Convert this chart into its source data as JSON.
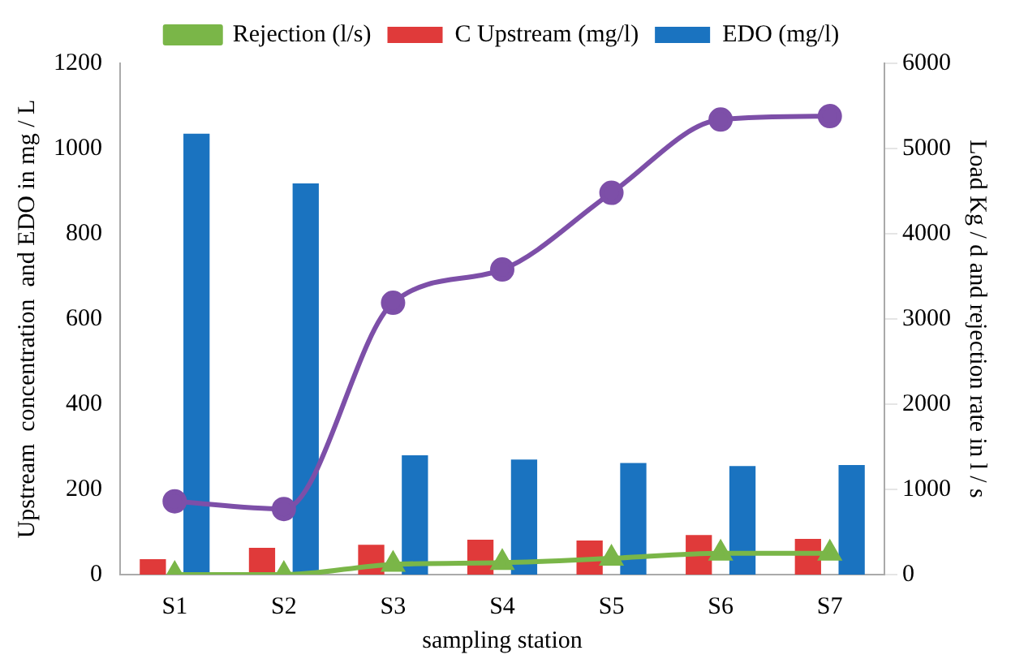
{
  "chart_data": {
    "type": "bar",
    "xlabel": "sampling station",
    "ylabel": "Upstream  concentration  and EDO in mg / L",
    "y2label": "Load Kg / d and rejection rate in l / s",
    "categories": [
      "S1",
      "S2",
      "S3",
      "S4",
      "S5",
      "S6",
      "S7"
    ],
    "series": [
      {
        "name": "C Upstream (mg/l)",
        "color": "#e03a3a",
        "values": [
          36,
          63,
          70,
          82,
          80,
          93,
          84
        ]
      },
      {
        "name": "EDO (mg/l)",
        "color": "#1a73c0",
        "values": [
          1035,
          918,
          280,
          270,
          262,
          255,
          257
        ]
      },
      {
        "name": "Rejection (l/s)",
        "type": "line",
        "axis": "y2",
        "color": "#7ab648",
        "marker": "triangle",
        "values": [
          0,
          0,
          120,
          140,
          190,
          250,
          250
        ]
      },
      {
        "type": "line",
        "axis": "y2",
        "color": "#7d4fa8",
        "marker": "circle",
        "values": [
          860,
          770,
          3190,
          3580,
          4480,
          5340,
          5380
        ]
      }
    ],
    "ylim": [
      0,
      1200
    ],
    "yticks": [
      0,
      200,
      400,
      600,
      800,
      1000,
      1200
    ],
    "y2lim": [
      0,
      6000
    ],
    "y2ticks": [
      0,
      1000,
      2000,
      3000,
      4000,
      5000,
      6000
    ],
    "grid": false,
    "legend": "top"
  }
}
